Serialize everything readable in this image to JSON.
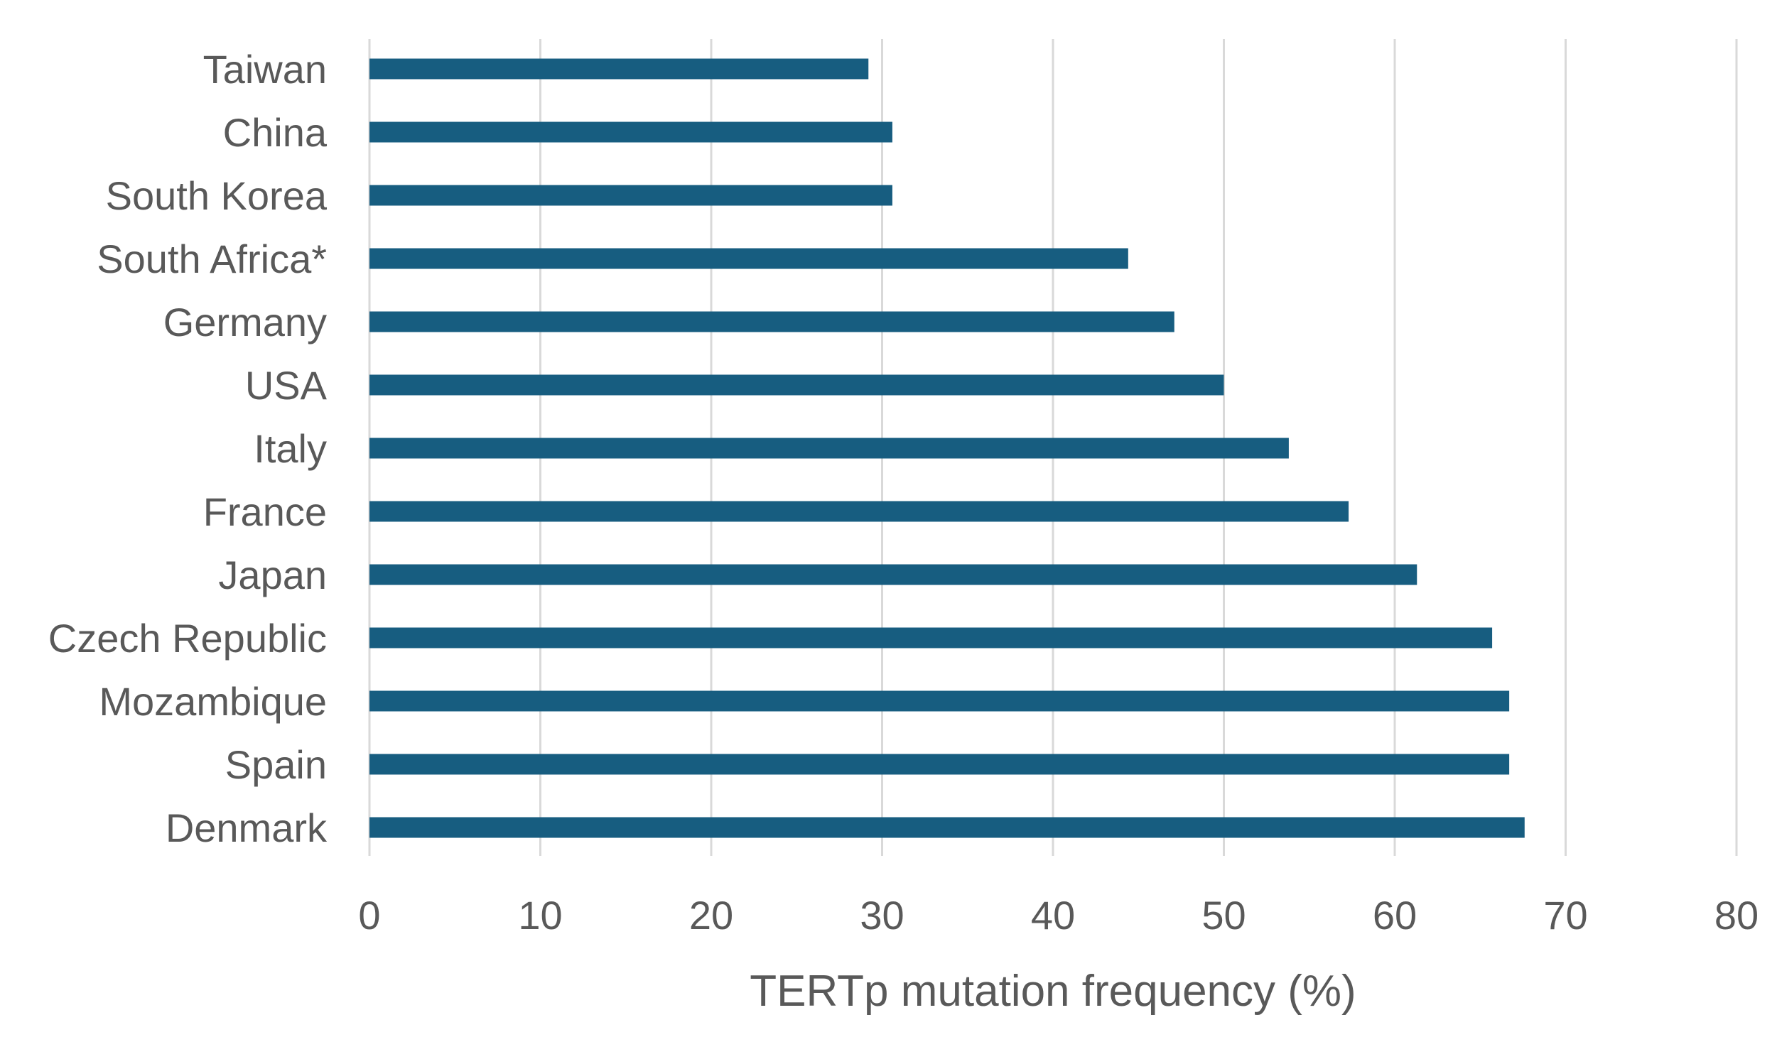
{
  "chart_data": {
    "type": "bar",
    "orientation": "horizontal",
    "title": "",
    "xlabel": "TERTp mutation frequency (%)",
    "ylabel": "",
    "xlim": [
      0,
      80
    ],
    "x_ticks": [
      0,
      10,
      20,
      30,
      40,
      50,
      60,
      70,
      80
    ],
    "grid": "vertical",
    "legend": "none",
    "bar_color": "#175d80",
    "categories": [
      "Taiwan",
      "China",
      "South Korea",
      "South Africa*",
      "Germany",
      "USA",
      "Italy",
      "France",
      "Japan",
      "Czech Republic",
      "Mozambique",
      "Spain",
      "Denmark"
    ],
    "values": [
      29.2,
      30.6,
      30.6,
      44.4,
      47.1,
      50.0,
      53.8,
      57.3,
      61.3,
      65.7,
      66.7,
      66.7,
      67.6
    ]
  }
}
